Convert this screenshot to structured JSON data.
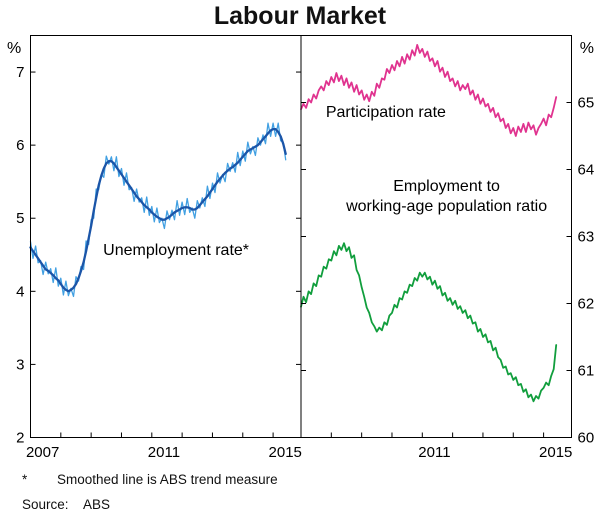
{
  "title": "Labour Market",
  "footnote": {
    "marker": "*",
    "text": "Smoothed line is ABS trend measure"
  },
  "source": {
    "label": "Source:",
    "value": "ABS"
  },
  "colors": {
    "unemployment_monthly": "#41a0e2",
    "unemployment_trend": "#1b55a8",
    "participation": "#e0338f",
    "employment_ratio": "#119e3d",
    "frame": "#000000"
  },
  "chart_data": {
    "type": "line",
    "title": "Labour Market",
    "x_unit": "year (monthly observations)",
    "x_start": 2007.0,
    "x_domain": [
      2007.0,
      2015.92
    ],
    "grid": false,
    "panels": [
      {
        "name": "left-panel",
        "axis": "left",
        "ylabel": "%",
        "ylim": [
          2,
          7.5
        ],
        "yticks": [
          2,
          3,
          4,
          5,
          6,
          7
        ],
        "xtick_labels": [
          "2007",
          "2011",
          "2015"
        ],
        "labels": [
          {
            "id": "unemployment-rate",
            "text": "Unemployment rate*",
            "x": 2011.8,
            "y": 4.5,
            "color": "#2e96dc"
          }
        ],
        "series": [
          {
            "id": "unemployment-monthly",
            "name": "Unemployment rate (monthly)",
            "color": "#41a0e2",
            "width": 1.3,
            "values": [
              4.68,
              4.45,
              4.62,
              4.39,
              4.42,
              4.23,
              4.4,
              4.24,
              4.31,
              4.12,
              4.32,
              4.07,
              4.18,
              3.95,
              4.14,
              3.94,
              4.04,
              3.93,
              4.2,
              4.14,
              4.34,
              4.3,
              4.69,
              4.64,
              4.98,
              5.0,
              5.4,
              5.39,
              5.6,
              5.56,
              5.85,
              5.74,
              5.84,
              5.65,
              5.84,
              5.57,
              5.68,
              5.45,
              5.62,
              5.39,
              5.42,
              5.23,
              5.4,
              5.22,
              5.28,
              5.08,
              5.29,
              5.04,
              5.16,
              4.95,
              5.14,
              4.94,
              5.0,
              4.86,
              5.1,
              4.98,
              5.11,
              4.98,
              5.24,
              5.04,
              5.22,
              5.05,
              5.27,
              5.08,
              5.14,
              5.0,
              5.24,
              5.14,
              5.28,
              5.16,
              5.44,
              5.27,
              5.48,
              5.35,
              5.62,
              5.48,
              5.6,
              5.5,
              5.75,
              5.64,
              5.76,
              5.63,
              5.9,
              5.72,
              5.92,
              5.78,
              6.04,
              5.88,
              5.98,
              5.86,
              6.1,
              6.0,
              6.14,
              6.02,
              6.3,
              6.12,
              6.3,
              6.12,
              6.3,
              6.06,
              6.04,
              5.8
            ]
          },
          {
            "id": "unemployment-trend",
            "name": "Unemployment rate (ABS trend)",
            "color": "#1b55a8",
            "width": 2.3,
            "values": [
              4.6,
              4.55,
              4.5,
              4.45,
              4.4,
              4.35,
              4.3,
              4.28,
              4.25,
              4.22,
              4.18,
              4.15,
              4.1,
              4.05,
              4.02,
              4.0,
              4.02,
              4.05,
              4.1,
              4.18,
              4.28,
              4.4,
              4.55,
              4.72,
              4.9,
              5.1,
              5.28,
              5.45,
              5.58,
              5.68,
              5.75,
              5.78,
              5.78,
              5.75,
              5.7,
              5.65,
              5.6,
              5.55,
              5.5,
              5.45,
              5.4,
              5.35,
              5.3,
              5.26,
              5.22,
              5.18,
              5.15,
              5.12,
              5.08,
              5.05,
              5.02,
              5.0,
              4.98,
              4.98,
              5.0,
              5.02,
              5.05,
              5.08,
              5.1,
              5.12,
              5.14,
              5.15,
              5.15,
              5.14,
              5.12,
              5.12,
              5.14,
              5.18,
              5.22,
              5.26,
              5.3,
              5.35,
              5.4,
              5.45,
              5.5,
              5.54,
              5.58,
              5.62,
              5.65,
              5.68,
              5.7,
              5.73,
              5.76,
              5.8,
              5.84,
              5.88,
              5.92,
              5.94,
              5.96,
              5.98,
              6.0,
              6.04,
              6.08,
              6.12,
              6.16,
              6.2,
              6.22,
              6.22,
              6.18,
              6.12,
              6.02,
              5.88
            ]
          }
        ]
      },
      {
        "name": "right-panel",
        "axis": "right",
        "ylabel": "%",
        "ylim": [
          60,
          66
        ],
        "yticks": [
          60,
          61,
          62,
          63,
          64,
          65
        ],
        "xtick_labels": [
          "2011",
          "2015"
        ],
        "labels": [
          {
            "id": "participation-rate",
            "text": "Participation rate",
            "x": 2009.8,
            "y": 64.78,
            "color": "#e0338f"
          },
          {
            "id": "employment-ratio-line1",
            "text": "Employment to",
            "x": 2011.8,
            "y": 63.68,
            "color": "#119e3d"
          },
          {
            "id": "employment-ratio-line2",
            "text": "working-age population ratio",
            "x": 2011.8,
            "y": 63.38,
            "color": "#119e3d"
          }
        ],
        "series": [
          {
            "id": "participation-rate",
            "name": "Participation rate",
            "color": "#e0338f",
            "width": 1.8,
            "values": [
              64.9,
              64.98,
              64.92,
              65.05,
              65.0,
              65.12,
              65.06,
              65.18,
              65.24,
              65.18,
              65.32,
              65.26,
              65.38,
              65.3,
              65.44,
              65.32,
              65.4,
              65.26,
              65.36,
              65.22,
              65.3,
              65.16,
              65.26,
              65.12,
              65.18,
              65.04,
              65.12,
              65.02,
              65.16,
              65.1,
              65.28,
              65.22,
              65.36,
              65.34,
              65.5,
              65.44,
              65.56,
              65.48,
              65.62,
              65.54,
              65.68,
              65.58,
              65.72,
              65.64,
              65.78,
              65.7,
              65.86,
              65.74,
              65.8,
              65.68,
              65.76,
              65.62,
              65.66,
              65.54,
              65.62,
              65.46,
              65.52,
              65.38,
              65.46,
              65.32,
              65.36,
              65.24,
              65.32,
              65.18,
              65.26,
              65.2,
              65.28,
              65.12,
              65.18,
              65.04,
              65.12,
              64.98,
              65.06,
              64.94,
              64.98,
              64.86,
              64.92,
              64.78,
              64.84,
              64.72,
              64.76,
              64.62,
              64.68,
              64.54,
              64.62,
              64.5,
              64.64,
              64.56,
              64.68,
              64.56,
              64.7,
              64.6,
              64.66,
              64.52,
              64.62,
              64.68,
              64.76,
              64.66,
              64.82,
              64.78,
              64.92,
              65.08
            ]
          },
          {
            "id": "employment-ratio",
            "name": "Employment to working-age population ratio",
            "color": "#119e3d",
            "width": 1.8,
            "values": [
              61.95,
              62.1,
              62.02,
              62.18,
              62.14,
              62.3,
              62.26,
              62.42,
              62.4,
              62.55,
              62.52,
              62.66,
              62.64,
              62.78,
              62.72,
              62.86,
              62.8,
              62.9,
              62.78,
              62.84,
              62.68,
              62.72,
              62.5,
              62.42,
              62.24,
              62.1,
              61.94,
              61.86,
              61.72,
              61.66,
              61.58,
              61.64,
              61.6,
              61.72,
              61.68,
              61.82,
              61.86,
              61.98,
              61.94,
              62.08,
              62.06,
              62.18,
              62.16,
              62.28,
              62.26,
              62.38,
              62.34,
              62.46,
              62.4,
              62.46,
              62.36,
              62.4,
              62.28,
              62.34,
              62.22,
              62.26,
              62.12,
              62.16,
              62.04,
              62.08,
              61.98,
              62.04,
              61.92,
              61.96,
              61.86,
              61.9,
              61.78,
              61.82,
              61.7,
              61.72,
              61.58,
              61.62,
              61.5,
              61.54,
              61.42,
              61.44,
              61.3,
              61.34,
              61.2,
              61.16,
              61.04,
              61.06,
              60.94,
              60.96,
              60.86,
              60.9,
              60.78,
              60.8,
              60.68,
              60.72,
              60.6,
              60.64,
              60.54,
              60.62,
              60.58,
              60.7,
              60.74,
              60.82,
              60.78,
              60.92,
              61.02,
              61.38
            ]
          }
        ]
      }
    ]
  }
}
